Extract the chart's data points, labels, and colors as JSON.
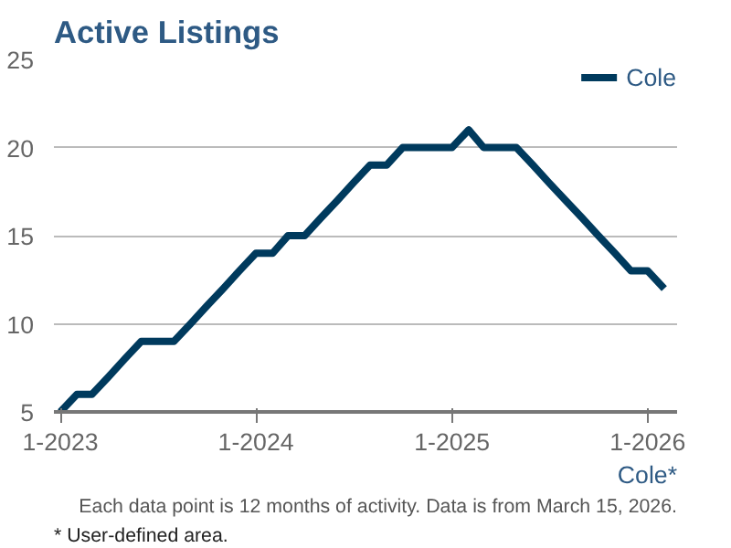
{
  "chart_data": {
    "type": "line",
    "title": "Active Listings",
    "x": [
      "2023-01",
      "2023-02",
      "2023-03",
      "2023-04",
      "2023-05",
      "2023-06",
      "2023-07",
      "2023-08",
      "2023-09",
      "2023-10",
      "2023-11",
      "2023-12",
      "2024-01",
      "2024-02",
      "2024-03",
      "2024-04",
      "2024-05",
      "2024-06",
      "2024-07",
      "2024-08",
      "2024-09",
      "2024-10",
      "2024-11",
      "2024-12",
      "2025-01",
      "2025-02",
      "2025-03",
      "2025-04",
      "2025-05",
      "2025-06",
      "2025-07",
      "2025-08",
      "2025-09",
      "2025-10",
      "2025-11",
      "2025-12",
      "2026-01",
      "2026-02"
    ],
    "series": [
      {
        "name": "Cole",
        "color": "#003a5d",
        "values": [
          5,
          6,
          6,
          7,
          8,
          9,
          9,
          9,
          10,
          11,
          12,
          13,
          14,
          14,
          15,
          15,
          16,
          17,
          18,
          19,
          19,
          20,
          20,
          20,
          20,
          21,
          20,
          20,
          20,
          19,
          18,
          17,
          16,
          15,
          14,
          13,
          13,
          12
        ]
      }
    ],
    "xlim": [
      "2022-12-20",
      "2026-02-25"
    ],
    "xticks": [
      {
        "value": "2023-01",
        "label": "1-2023"
      },
      {
        "value": "2024-01",
        "label": "1-2024"
      },
      {
        "value": "2025-01",
        "label": "1-2025"
      },
      {
        "value": "2026-01",
        "label": "1-2026"
      }
    ],
    "ylim": [
      5,
      25
    ],
    "yticks": [
      5,
      10,
      15,
      20,
      25
    ],
    "grid": "y",
    "legend": "top right",
    "marker": "none",
    "line_style": "solid",
    "annotations": [
      "Cole*",
      "Each data point is 12 months of activity. Data is from March 15, 2026.",
      "* User-defined area."
    ]
  }
}
